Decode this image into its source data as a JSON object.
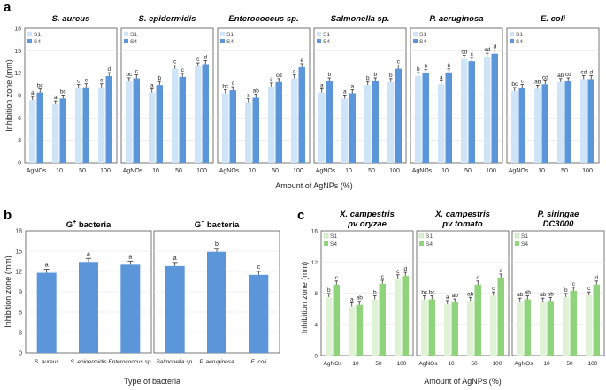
{
  "figure": {
    "panels": [
      {
        "letter": "a"
      },
      {
        "letter": "b"
      },
      {
        "letter": "c"
      }
    ]
  },
  "chart_data": [
    {
      "panel": "a",
      "type": "bar",
      "ylabel": "Inhibition zone (mm)",
      "xlabel": "Amount of AgNPs (%)",
      "ylim": [
        0,
        18
      ],
      "yticks": [
        0,
        3,
        6,
        9,
        12,
        15,
        18
      ],
      "categories": [
        "AgNOs",
        "10",
        "50",
        "100"
      ],
      "legend": [
        "S1",
        "S4"
      ],
      "colors": {
        "S1": "#cfe4f6",
        "S4": "#5b96db"
      },
      "subplots": [
        {
          "title": "S. aureus",
          "S1": [
            8.4,
            7.8,
            10.0,
            10.1
          ],
          "S4": [
            9.4,
            8.6,
            10.1,
            11.6
          ],
          "letters_S1": [
            "a",
            "a",
            "c",
            "c"
          ],
          "letters_S4": [
            "bc",
            "bc",
            "c",
            "d"
          ]
        },
        {
          "title": "S. epidermidis",
          "S1": [
            10.9,
            9.4,
            12.6,
            12.9
          ],
          "S4": [
            11.3,
            10.4,
            11.5,
            13.2
          ],
          "letters_S1": [
            "bc",
            "a",
            "c",
            "c"
          ],
          "letters_S4": [
            "c",
            "b",
            "c",
            "d"
          ]
        },
        {
          "title": "Enterococcus sp.",
          "S1": [
            9.3,
            8.1,
            10.2,
            11.3
          ],
          "S4": [
            9.7,
            8.7,
            10.8,
            12.8
          ],
          "letters_S1": [
            "bc",
            "a",
            "c",
            "c"
          ],
          "letters_S4": [
            "c",
            "ab",
            "cd",
            "e"
          ]
        },
        {
          "title": "Salmonella sp.",
          "S1": [
            9.4,
            8.6,
            10.4,
            10.8
          ],
          "S4": [
            10.9,
            9.3,
            10.9,
            12.6
          ],
          "letters_S1": [
            "a",
            "a",
            "b",
            "b"
          ],
          "letters_S4": [
            "b",
            "a",
            "b",
            "c"
          ]
        },
        {
          "title": "P. aeruginosa",
          "S1": [
            11.6,
            10.5,
            13.9,
            14.2
          ],
          "S4": [
            12.0,
            12.1,
            13.6,
            14.6
          ],
          "letters_S1": [
            "b",
            "a",
            "cd",
            "cd"
          ],
          "letters_S4": [
            "b",
            "b",
            "c",
            "d"
          ]
        },
        {
          "title": "E. coli",
          "S1": [
            9.6,
            9.9,
            10.8,
            11.2
          ],
          "S4": [
            10.0,
            10.5,
            10.9,
            11.2
          ],
          "letters_S1": [
            "bc",
            "ab",
            "ab",
            "cd"
          ],
          "letters_S4": [
            "c",
            "cd",
            "cd",
            "d"
          ]
        }
      ]
    },
    {
      "panel": "b",
      "type": "bar",
      "ylabel": "Inhibition zone (mm)",
      "xlabel": "Type of bacteria",
      "ylim": [
        0,
        18
      ],
      "yticks": [
        0,
        3,
        6,
        9,
        12,
        15,
        18
      ],
      "color": "#5b96db",
      "subplots": [
        {
          "title_main": "G",
          "title_sup": "+",
          "title_rest": " bacteria",
          "categories": [
            "S. aureus",
            "S. epidermidis",
            "Enterococcus sp."
          ],
          "values": [
            11.8,
            13.4,
            13.0
          ],
          "letters": [
            "a",
            "a",
            "a"
          ]
        },
        {
          "title_main": "G",
          "title_sup": "−",
          "title_rest": " bacteria",
          "categories": [
            "Salmonella sp.",
            "P. aeruginosa",
            "E. coli"
          ],
          "values": [
            12.8,
            14.9,
            11.5
          ],
          "letters": [
            "a",
            "b",
            "c"
          ]
        }
      ]
    },
    {
      "panel": "c",
      "type": "bar",
      "ylabel": "Inhibition zone (mm)",
      "xlabel": "Amount of AgNPs (%)",
      "ylim": [
        0,
        16
      ],
      "yticks": [
        0,
        4,
        8,
        12,
        16
      ],
      "categories": [
        "AgNOs",
        "10",
        "50",
        "100"
      ],
      "legend": [
        "S1",
        "S4"
      ],
      "colors": {
        "S1": "#dff2d6",
        "S4": "#8fd47a"
      },
      "subplots": [
        {
          "title1": "X. campestris",
          "title2": "pv oryzae",
          "S1": [
            7.5,
            6.3,
            7.2,
            9.9
          ],
          "S4": [
            9.1,
            6.5,
            9.2,
            10.2
          ],
          "letters_S1": [
            "b",
            "a",
            "b",
            "c"
          ],
          "letters_S4": [
            "c",
            "ab",
            "c",
            "d"
          ]
        },
        {
          "title1": "X. campestris",
          "title2": "pv tomato",
          "S1": [
            7.2,
            6.6,
            7.0,
            7.7
          ],
          "S4": [
            7.2,
            6.8,
            9.1,
            10.0
          ],
          "letters_S1": [
            "bc",
            "a",
            "ab",
            "c"
          ],
          "letters_S4": [
            "bc",
            "ab",
            "d",
            "e"
          ]
        },
        {
          "title1": "P. siringae",
          "title2": "DC3000",
          "S1": [
            6.9,
            6.9,
            7.5,
            7.7
          ],
          "S4": [
            7.2,
            7.0,
            8.3,
            9.1
          ],
          "letters_S1": [
            "ab",
            "ab",
            "b",
            "c"
          ],
          "letters_S4": [
            "ab",
            "ab",
            "c",
            "d"
          ]
        }
      ]
    }
  ]
}
